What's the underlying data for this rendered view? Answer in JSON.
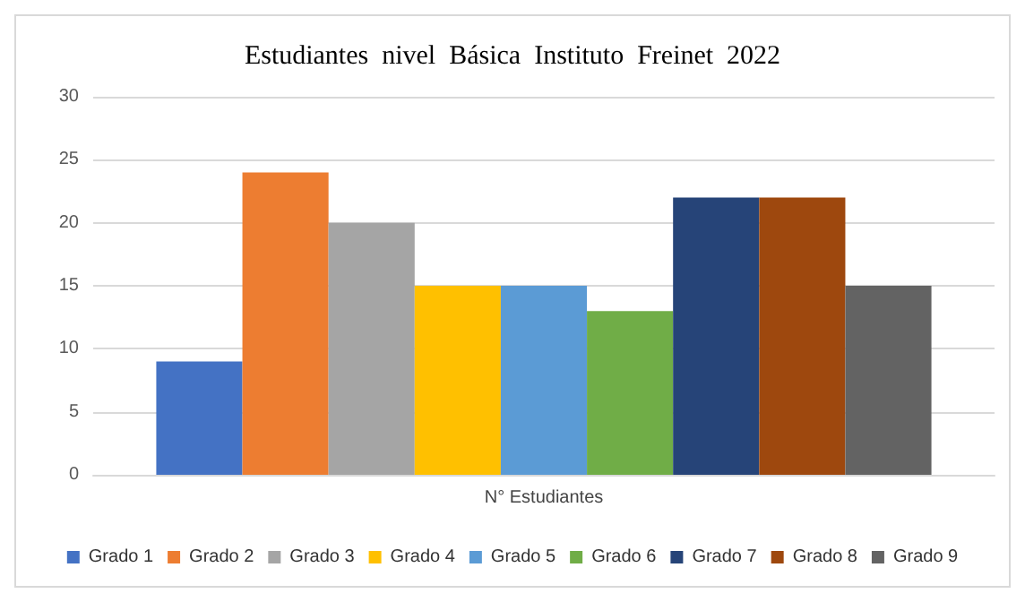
{
  "chart_data": {
    "type": "bar",
    "title": "Estudiantes  nivel  Básica  Instituto  Freinet  2022",
    "categories": [
      "N° Estudiantes"
    ],
    "series": [
      {
        "name": "Grado 1",
        "color": "#4472c4",
        "values": [
          9
        ]
      },
      {
        "name": "Grado 2",
        "color": "#ed7d31",
        "values": [
          24
        ]
      },
      {
        "name": "Grado 3",
        "color": "#a5a5a5",
        "values": [
          20
        ]
      },
      {
        "name": "Grado 4",
        "color": "#ffc000",
        "values": [
          15
        ]
      },
      {
        "name": "Grado 5",
        "color": "#5b9bd5",
        "values": [
          15
        ]
      },
      {
        "name": "Grado 6",
        "color": "#70ad47",
        "values": [
          13
        ]
      },
      {
        "name": "Grado 7",
        "color": "#264478",
        "values": [
          22
        ]
      },
      {
        "name": "Grado 8",
        "color": "#9e480e",
        "values": [
          22
        ]
      },
      {
        "name": "Grado 9",
        "color": "#636363",
        "values": [
          15
        ]
      }
    ],
    "ylim": [
      0,
      30
    ],
    "yticks": [
      0,
      5,
      10,
      15,
      20,
      25,
      30
    ],
    "grid": "y",
    "legend": "bottom"
  }
}
